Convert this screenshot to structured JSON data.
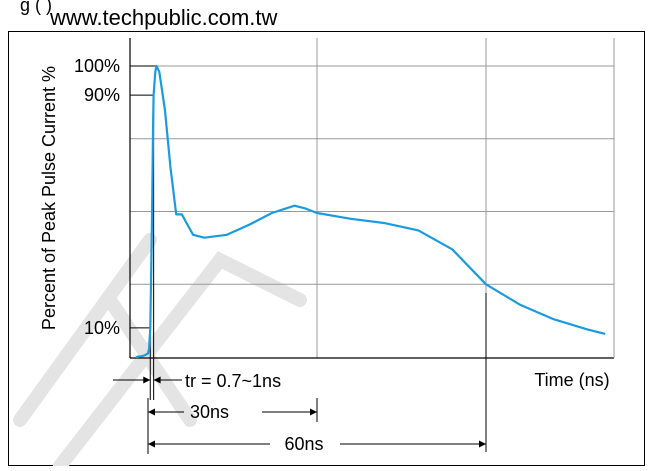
{
  "header": {
    "truncated_caption": "g                                                  (                                            )",
    "watermark_url": "www.techpublic.com.tw"
  },
  "chart_data": {
    "type": "line",
    "title": "",
    "xlabel": "Time (ns)",
    "ylabel": "Percent of Peak Pulse Current %",
    "x_unit": "ns",
    "xlim": [
      -2,
      82
    ],
    "ylim": [
      0,
      100
    ],
    "grid": true,
    "y_tick_labels": [
      {
        "value": 100,
        "label": "100%"
      },
      {
        "value": 90,
        "label": "90%"
      },
      {
        "value": 10,
        "label": "10%"
      }
    ],
    "series": [
      {
        "color": "#1a9be0",
        "points": [
          [
            -2,
            0
          ],
          [
            -1,
            0.3
          ],
          [
            -0.5,
            0.7
          ],
          [
            0,
            1.2
          ],
          [
            0.2,
            3
          ],
          [
            0.4,
            10
          ],
          [
            0.7,
            45
          ],
          [
            0.9,
            80
          ],
          [
            1,
            90
          ],
          [
            1.3,
            98
          ],
          [
            1.5,
            100
          ],
          [
            2,
            98
          ],
          [
            3,
            85
          ],
          [
            4,
            65
          ],
          [
            5,
            49
          ],
          [
            6,
            49
          ],
          [
            8,
            42
          ],
          [
            10,
            41
          ],
          [
            14,
            42
          ],
          [
            18,
            45.5
          ],
          [
            22,
            49.5
          ],
          [
            26,
            52
          ],
          [
            28,
            51
          ],
          [
            30,
            49.5
          ],
          [
            36,
            47.5
          ],
          [
            42,
            46
          ],
          [
            48,
            43.5
          ],
          [
            54,
            37
          ],
          [
            60,
            25
          ],
          [
            66,
            18
          ],
          [
            72,
            13
          ],
          [
            78,
            9.5
          ],
          [
            81,
            8
          ]
        ]
      }
    ],
    "annotations": [
      {
        "type": "level-marker",
        "y": 100,
        "label": "100%"
      },
      {
        "type": "level-marker",
        "y": 90,
        "label": "90%"
      },
      {
        "type": "level-marker",
        "y": 10,
        "label": "10%"
      },
      {
        "type": "interval",
        "from": 0.4,
        "to": 1,
        "label": "tr = 0.7~1ns"
      },
      {
        "type": "interval",
        "from": 0,
        "to": 30,
        "label": "30ns"
      },
      {
        "type": "interval",
        "from": 0,
        "to": 60,
        "label": "60ns"
      }
    ]
  }
}
